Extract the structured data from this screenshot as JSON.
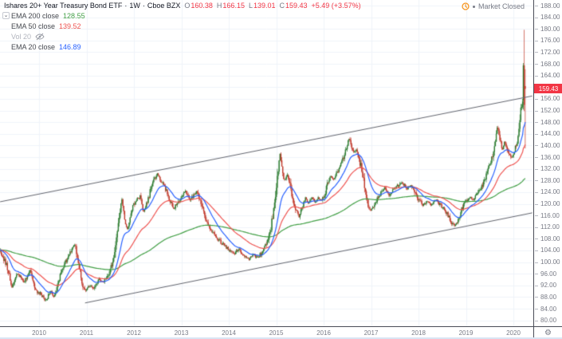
{
  "header": {
    "symbol_title": "Ishares 20+ Year Treasury Bond ETF",
    "separator": "·",
    "interval": "1W",
    "exchange": "Cboe BZX",
    "ohlc": {
      "o_label": "O",
      "o": "160.38",
      "h_label": "H",
      "h": "166.15",
      "l_label": "L",
      "l": "139.01",
      "c_label": "C",
      "c": "159.43",
      "change": "+5.49 (+3.57%)"
    }
  },
  "status": {
    "market_status": "Market Closed",
    "icon": "clock-icon"
  },
  "legend": [
    {
      "label": "EMA 200 close",
      "value": "128.55",
      "value_color": "#43a047"
    },
    {
      "label": "EMA 50 close",
      "value": "139.52",
      "value_color": "#ef5350"
    },
    {
      "label": "Vol 20",
      "value": "",
      "hidden": true
    },
    {
      "label": "EMA 20 close",
      "value": "146.89",
      "value_color": "#2962ff"
    }
  ],
  "legend_chevron": "⌄",
  "price_axis": {
    "min": 80,
    "max": 188,
    "step": 4,
    "ticks": [
      "188.00",
      "184.00",
      "180.00",
      "176.00",
      "172.00",
      "168.00",
      "164.00",
      "160.00",
      "156.00",
      "152.00",
      "148.00",
      "144.00",
      "140.00",
      "136.00",
      "132.00",
      "128.00",
      "124.00",
      "120.00",
      "116.00",
      "112.00",
      "108.00",
      "104.00",
      "100.00",
      "96.00",
      "92.00",
      "88.00",
      "84.00",
      "80.00"
    ],
    "last_price": "159.43",
    "gear_icon": "⚙"
  },
  "time_axis": {
    "ticks": [
      "2010",
      "2011",
      "2012",
      "2013",
      "2014",
      "2015",
      "2016",
      "2017",
      "2018",
      "2019",
      "2020"
    ]
  },
  "colors": {
    "background": "#ffffff",
    "grid": "#f0f3fa",
    "axis_text": "#787b86",
    "axis_border": "#4a4d57",
    "candle_up": "#2e7d32",
    "candle_down": "#c0392b",
    "ema20": "#2962ff",
    "ema50": "#ef5350",
    "ema200": "#43a047",
    "channel": "#62656e",
    "last_price_bg": "#f23645",
    "ohlc_down": "#f23645",
    "status_orange": "#f7931a",
    "title_text": "#131722"
  },
  "chart_data": {
    "type": "candlestick",
    "title": "Ishares 20+ Year Treasury Bond ETF · 1W · Cboe BZX",
    "x_unit": "decimal_year",
    "x_range": [
      2009.18,
      2020.42
    ],
    "y_range": [
      80,
      188
    ],
    "grid": true,
    "indicators": [
      {
        "name": "EMA",
        "period": 20,
        "source": "close",
        "last_value": 146.89,
        "color": "#2962ff"
      },
      {
        "name": "EMA",
        "period": 50,
        "source": "close",
        "last_value": 139.52,
        "color": "#ef5350"
      },
      {
        "name": "EMA",
        "period": 200,
        "source": "close",
        "last_value": 128.55,
        "color": "#43a047"
      },
      {
        "name": "Vol",
        "period": 20,
        "hidden": true
      }
    ],
    "channel": {
      "upper": [
        [
          2009.18,
          120.7
        ],
        [
          2020.4,
          157.0
        ]
      ],
      "lower": [
        [
          2010.97,
          86.0
        ],
        [
          2020.4,
          116.9
        ]
      ]
    },
    "close_path": [
      [
        2009.18,
        104
      ],
      [
        2009.31,
        99
      ],
      [
        2009.43,
        91.5
      ],
      [
        2009.55,
        96
      ],
      [
        2009.68,
        93
      ],
      [
        2009.82,
        97.5
      ],
      [
        2009.93,
        90
      ],
      [
        2010.05,
        89
      ],
      [
        2010.13,
        86.5
      ],
      [
        2010.24,
        90
      ],
      [
        2010.32,
        87.5
      ],
      [
        2010.44,
        95
      ],
      [
        2010.55,
        100
      ],
      [
        2010.69,
        104.5
      ],
      [
        2010.76,
        106
      ],
      [
        2010.82,
        101
      ],
      [
        2010.91,
        93
      ],
      [
        2010.97,
        90
      ],
      [
        2011.06,
        92
      ],
      [
        2011.16,
        91
      ],
      [
        2011.26,
        94
      ],
      [
        2011.36,
        93.5
      ],
      [
        2011.46,
        95.5
      ],
      [
        2011.56,
        101
      ],
      [
        2011.63,
        109
      ],
      [
        2011.7,
        116
      ],
      [
        2011.75,
        122
      ],
      [
        2011.82,
        113
      ],
      [
        2011.87,
        111.5
      ],
      [
        2011.93,
        117
      ],
      [
        2012.0,
        120
      ],
      [
        2012.07,
        121.5
      ],
      [
        2012.13,
        122.5
      ],
      [
        2012.2,
        117.5
      ],
      [
        2012.29,
        121
      ],
      [
        2012.37,
        126
      ],
      [
        2012.45,
        129
      ],
      [
        2012.5,
        130.5
      ],
      [
        2012.57,
        128
      ],
      [
        2012.64,
        126.5
      ],
      [
        2012.71,
        123
      ],
      [
        2012.77,
        121
      ],
      [
        2012.84,
        118
      ],
      [
        2012.91,
        120.5
      ],
      [
        2012.99,
        121.5
      ],
      [
        2013.08,
        124.5
      ],
      [
        2013.18,
        121
      ],
      [
        2013.26,
        123
      ],
      [
        2013.33,
        124.5
      ],
      [
        2013.41,
        120
      ],
      [
        2013.51,
        115
      ],
      [
        2013.61,
        111.5
      ],
      [
        2013.71,
        109
      ],
      [
        2013.82,
        107
      ],
      [
        2013.92,
        105.5
      ],
      [
        2014.02,
        104
      ],
      [
        2014.12,
        103
      ],
      [
        2014.22,
        104.5
      ],
      [
        2014.32,
        102
      ],
      [
        2014.42,
        101
      ],
      [
        2014.52,
        102.5
      ],
      [
        2014.62,
        101.5
      ],
      [
        2014.72,
        104
      ],
      [
        2014.81,
        107
      ],
      [
        2014.89,
        112
      ],
      [
        2014.96,
        119
      ],
      [
        2015.03,
        130
      ],
      [
        2015.08,
        137.5
      ],
      [
        2015.13,
        131
      ],
      [
        2015.18,
        127.5
      ],
      [
        2015.23,
        130
      ],
      [
        2015.28,
        127
      ],
      [
        2015.34,
        122
      ],
      [
        2015.41,
        118
      ],
      [
        2015.48,
        115.5
      ],
      [
        2015.55,
        119
      ],
      [
        2015.61,
        122
      ],
      [
        2015.68,
        120
      ],
      [
        2015.75,
        122.5
      ],
      [
        2015.82,
        120.5
      ],
      [
        2015.88,
        122
      ],
      [
        2015.95,
        121
      ],
      [
        2016.02,
        123
      ],
      [
        2016.08,
        127
      ],
      [
        2016.15,
        129.5
      ],
      [
        2016.22,
        128
      ],
      [
        2016.29,
        131
      ],
      [
        2016.35,
        133
      ],
      [
        2016.42,
        136
      ],
      [
        2016.49,
        140
      ],
      [
        2016.54,
        142.5
      ],
      [
        2016.59,
        139
      ],
      [
        2016.64,
        137
      ],
      [
        2016.69,
        138.5
      ],
      [
        2016.74,
        135
      ],
      [
        2016.79,
        133
      ],
      [
        2016.84,
        128
      ],
      [
        2016.89,
        123
      ],
      [
        2016.94,
        119.5
      ],
      [
        2016.99,
        117.5
      ],
      [
        2017.04,
        119
      ],
      [
        2017.11,
        121
      ],
      [
        2017.18,
        123
      ],
      [
        2017.28,
        125.5
      ],
      [
        2017.38,
        123
      ],
      [
        2017.48,
        125
      ],
      [
        2017.58,
        126.5
      ],
      [
        2017.66,
        127.5
      ],
      [
        2017.75,
        125
      ],
      [
        2017.83,
        126.5
      ],
      [
        2017.92,
        124.5
      ],
      [
        2018.02,
        121
      ],
      [
        2018.1,
        119.5
      ],
      [
        2018.19,
        121
      ],
      [
        2018.27,
        119.5
      ],
      [
        2018.35,
        121.5
      ],
      [
        2018.44,
        120
      ],
      [
        2018.52,
        118.5
      ],
      [
        2018.61,
        116.5
      ],
      [
        2018.69,
        113.5
      ],
      [
        2018.76,
        112.3
      ],
      [
        2018.82,
        113.5
      ],
      [
        2018.89,
        117
      ],
      [
        2018.96,
        120.5
      ],
      [
        2019.03,
        121
      ],
      [
        2019.09,
        122.5
      ],
      [
        2019.16,
        121.5
      ],
      [
        2019.23,
        123.5
      ],
      [
        2019.29,
        124.5
      ],
      [
        2019.36,
        126.5
      ],
      [
        2019.43,
        130
      ],
      [
        2019.5,
        133
      ],
      [
        2019.56,
        136.5
      ],
      [
        2019.61,
        141
      ],
      [
        2019.66,
        146.5
      ],
      [
        2019.71,
        143
      ],
      [
        2019.76,
        138.5
      ],
      [
        2019.82,
        141.5
      ],
      [
        2019.87,
        139
      ],
      [
        2019.92,
        137
      ],
      [
        2019.97,
        135.5
      ],
      [
        2020.02,
        137.5
      ],
      [
        2020.07,
        141
      ],
      [
        2020.12,
        146
      ],
      [
        2020.15,
        151
      ],
      [
        2020.19,
        156
      ]
    ],
    "last_bars": [
      {
        "t": 2020.21,
        "o": 155.5,
        "h": 168.3,
        "l": 152.3,
        "c": 167.5
      },
      {
        "t": 2020.23,
        "o": 167.5,
        "h": 179.7,
        "l": 151.8,
        "c": 153.94
      },
      {
        "t": 2020.25,
        "o": 160.38,
        "h": 166.15,
        "l": 139.01,
        "c": 159.43
      }
    ]
  }
}
